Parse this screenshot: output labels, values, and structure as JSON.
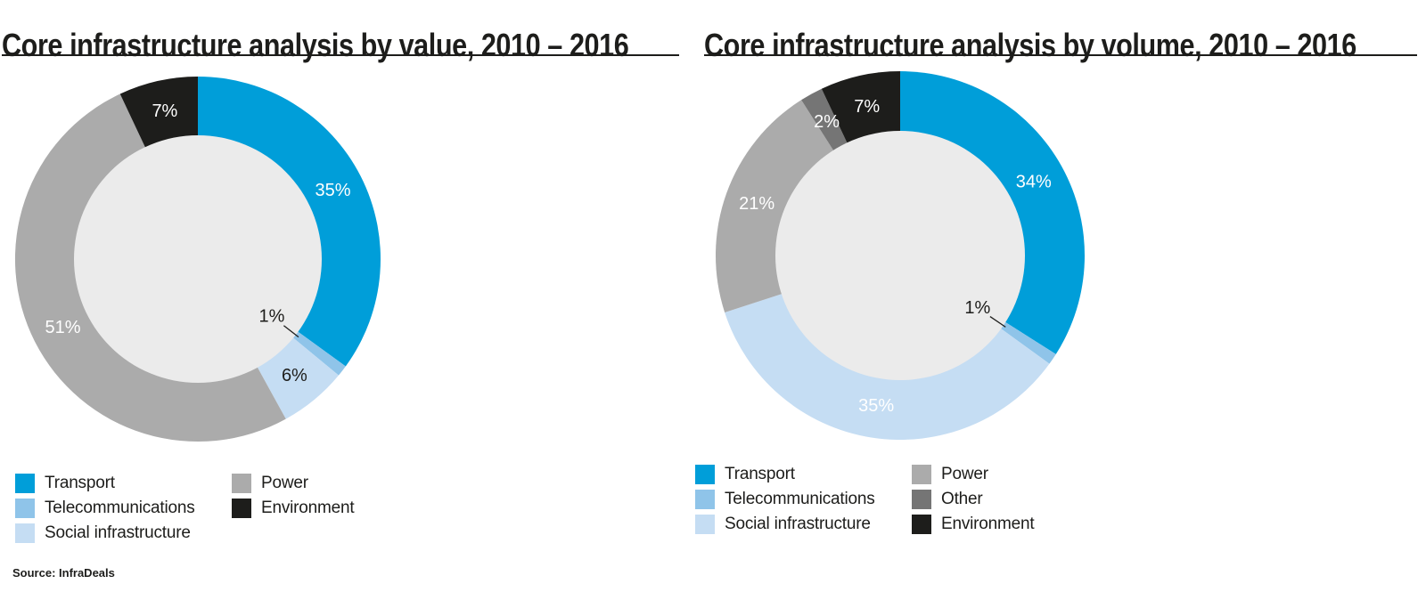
{
  "page": {
    "background": "#ffffff",
    "text_color": "#1d1d1b",
    "divider_color": "#1d1d1b",
    "source_label": "Source: InfraDeals"
  },
  "chart_data": [
    {
      "type": "pie",
      "subtype": "donut",
      "title": "Core infrastructure analysis by value, 2010 – 2016",
      "unit": "%",
      "start_angle_deg": 0,
      "direction": "clockwise",
      "hole_color": "#ebebeb",
      "legend_position": "bottom",
      "categories": [
        "Transport",
        "Telecommunications",
        "Social infrastructure",
        "Power",
        "Environment"
      ],
      "values": [
        35,
        1,
        6,
        51,
        7
      ],
      "slices": [
        {
          "label": "Transport",
          "value": 35,
          "display": "35%",
          "color": "#009ed9",
          "label_color": "#ffffff",
          "leader": false
        },
        {
          "label": "Telecommunications",
          "value": 1,
          "display": "1%",
          "color": "#8fc4e9",
          "label_color": "#1d1d1b",
          "leader": true
        },
        {
          "label": "Social infrastructure",
          "value": 6,
          "display": "6%",
          "color": "#c5ddf3",
          "label_color": "#1d1d1b",
          "leader": false
        },
        {
          "label": "Power",
          "value": 51,
          "display": "51%",
          "color": "#ababab",
          "label_color": "#ffffff",
          "leader": false
        },
        {
          "label": "Environment",
          "value": 7,
          "display": "7%",
          "color": "#1d1d1b",
          "label_color": "#ffffff",
          "leader": false
        }
      ]
    },
    {
      "type": "pie",
      "subtype": "donut",
      "title": "Core infrastructure analysis by volume, 2010 – 2016",
      "unit": "%",
      "start_angle_deg": 0,
      "direction": "clockwise",
      "hole_color": "#ebebeb",
      "legend_position": "bottom",
      "categories": [
        "Transport",
        "Telecommunications",
        "Social infrastructure",
        "Power",
        "Other",
        "Environment"
      ],
      "values": [
        34,
        1,
        35,
        21,
        2,
        7
      ],
      "slices": [
        {
          "label": "Transport",
          "value": 34,
          "display": "34%",
          "color": "#009ed9",
          "label_color": "#ffffff",
          "leader": false
        },
        {
          "label": "Telecommunications",
          "value": 1,
          "display": "1%",
          "color": "#8fc4e9",
          "label_color": "#1d1d1b",
          "leader": true
        },
        {
          "label": "Social infrastructure",
          "value": 35,
          "display": "35%",
          "color": "#c5ddf3",
          "label_color": "#ffffff",
          "leader": false
        },
        {
          "label": "Power",
          "value": 21,
          "display": "21%",
          "color": "#ababab",
          "label_color": "#ffffff",
          "leader": false
        },
        {
          "label": "Other",
          "value": 2,
          "display": "2%",
          "color": "#757575",
          "label_color": "#ffffff",
          "leader": false
        },
        {
          "label": "Environment",
          "value": 7,
          "display": "7%",
          "color": "#1d1d1b",
          "label_color": "#ffffff",
          "leader": false
        }
      ]
    }
  ]
}
